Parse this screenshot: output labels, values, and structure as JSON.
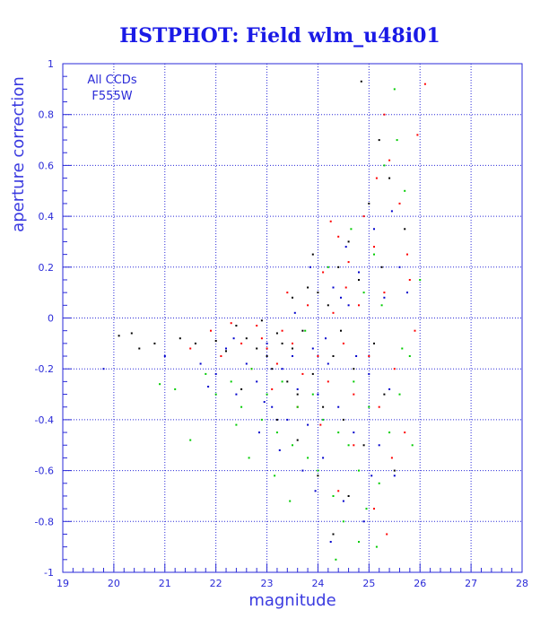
{
  "chart_data": {
    "type": "scatter",
    "title": "HSTPHOT: Field wlm_u48i01",
    "xlabel": "magnitude",
    "ylabel": "aperture correction",
    "xlim": [
      19,
      28
    ],
    "ylim": [
      -1,
      1
    ],
    "xticks": [
      "19",
      "20",
      "21",
      "22",
      "23",
      "24",
      "25",
      "26",
      "27",
      "28"
    ],
    "yticks": [
      "-1",
      "-0.8",
      "-0.6",
      "-0.4",
      "-0.2",
      "0",
      "0.2",
      "0.4",
      "0.6",
      "0.8",
      "1"
    ],
    "grid": true,
    "annotations": [
      "All CCDs",
      "F555W"
    ],
    "series": [
      {
        "color": "#000000",
        "points": [
          [
            20.1,
            -0.07
          ],
          [
            20.35,
            -0.06
          ],
          [
            20.5,
            -0.12
          ],
          [
            20.8,
            -0.1
          ],
          [
            21.3,
            -0.08
          ],
          [
            21.6,
            -0.1
          ],
          [
            22.0,
            -0.09
          ],
          [
            22.2,
            -0.13
          ],
          [
            22.4,
            -0.03
          ],
          [
            22.6,
            -0.08
          ],
          [
            22.8,
            -0.12
          ],
          [
            22.9,
            -0.01
          ],
          [
            23.0,
            -0.15
          ],
          [
            23.1,
            -0.2
          ],
          [
            23.2,
            -0.06
          ],
          [
            23.3,
            -0.1
          ],
          [
            23.4,
            -0.25
          ],
          [
            23.5,
            -0.12
          ],
          [
            23.6,
            -0.3
          ],
          [
            23.7,
            -0.05
          ],
          [
            23.8,
            0.12
          ],
          [
            23.9,
            -0.22
          ],
          [
            24.0,
            0.1
          ],
          [
            24.1,
            -0.35
          ],
          [
            24.2,
            0.05
          ],
          [
            24.3,
            -0.15
          ],
          [
            24.4,
            0.2
          ],
          [
            24.5,
            -0.4
          ],
          [
            24.6,
            0.3
          ],
          [
            24.7,
            -0.2
          ],
          [
            24.8,
            0.15
          ],
          [
            24.9,
            -0.5
          ],
          [
            25.0,
            0.45
          ],
          [
            25.1,
            -0.1
          ],
          [
            25.2,
            0.7
          ],
          [
            25.3,
            -0.3
          ],
          [
            25.4,
            0.55
          ],
          [
            25.5,
            -0.6
          ],
          [
            24.3,
            -0.85
          ],
          [
            24.6,
            -0.7
          ],
          [
            24.0,
            -0.62
          ],
          [
            23.6,
            -0.48
          ],
          [
            23.2,
            -0.4
          ],
          [
            25.7,
            0.35
          ],
          [
            24.85,
            0.93
          ],
          [
            25.25,
            0.2
          ],
          [
            23.5,
            0.08
          ],
          [
            23.9,
            0.25
          ],
          [
            24.45,
            -0.05
          ],
          [
            22.5,
            -0.28
          ]
        ]
      },
      {
        "color": "#ff0000",
        "points": [
          [
            21.5,
            -0.12
          ],
          [
            21.9,
            -0.05
          ],
          [
            22.1,
            -0.15
          ],
          [
            22.3,
            -0.02
          ],
          [
            22.5,
            -0.1
          ],
          [
            22.7,
            -0.2
          ],
          [
            22.9,
            -0.08
          ],
          [
            23.0,
            -0.12
          ],
          [
            23.2,
            -0.18
          ],
          [
            23.3,
            -0.05
          ],
          [
            23.5,
            -0.1
          ],
          [
            23.7,
            -0.22
          ],
          [
            23.8,
            0.05
          ],
          [
            24.0,
            -0.15
          ],
          [
            24.1,
            0.18
          ],
          [
            24.2,
            -0.25
          ],
          [
            24.3,
            0.02
          ],
          [
            24.4,
            0.32
          ],
          [
            24.5,
            -0.1
          ],
          [
            24.6,
            0.22
          ],
          [
            24.7,
            -0.3
          ],
          [
            24.8,
            0.05
          ],
          [
            24.9,
            0.4
          ],
          [
            25.0,
            -0.15
          ],
          [
            25.1,
            0.28
          ],
          [
            25.2,
            -0.35
          ],
          [
            25.3,
            0.1
          ],
          [
            25.4,
            0.62
          ],
          [
            25.5,
            -0.2
          ],
          [
            25.6,
            0.45
          ],
          [
            25.7,
            -0.45
          ],
          [
            25.8,
            0.15
          ],
          [
            25.9,
            -0.05
          ],
          [
            26.1,
            0.92
          ],
          [
            25.95,
            0.72
          ],
          [
            25.3,
            0.8
          ],
          [
            24.7,
            -0.5
          ],
          [
            24.4,
            -0.68
          ],
          [
            25.1,
            -0.75
          ],
          [
            25.35,
            -0.85
          ],
          [
            23.1,
            -0.28
          ],
          [
            23.6,
            -0.35
          ],
          [
            24.05,
            -0.42
          ],
          [
            24.55,
            0.12
          ],
          [
            24.25,
            0.38
          ],
          [
            23.4,
            0.1
          ],
          [
            22.8,
            -0.03
          ],
          [
            25.45,
            -0.55
          ],
          [
            25.75,
            0.25
          ],
          [
            25.15,
            0.55
          ]
        ]
      },
      {
        "color": "#00cc00",
        "points": [
          [
            21.2,
            -0.28
          ],
          [
            21.8,
            -0.22
          ],
          [
            22.0,
            -0.3
          ],
          [
            22.3,
            -0.25
          ],
          [
            22.5,
            -0.35
          ],
          [
            22.7,
            -0.2
          ],
          [
            22.9,
            -0.4
          ],
          [
            23.0,
            -0.3
          ],
          [
            23.2,
            -0.45
          ],
          [
            23.3,
            -0.25
          ],
          [
            23.5,
            -0.5
          ],
          [
            23.6,
            -0.35
          ],
          [
            23.8,
            -0.55
          ],
          [
            23.9,
            -0.3
          ],
          [
            24.0,
            -0.6
          ],
          [
            24.1,
            -0.4
          ],
          [
            24.3,
            -0.7
          ],
          [
            24.4,
            -0.45
          ],
          [
            24.5,
            -0.8
          ],
          [
            24.6,
            -0.5
          ],
          [
            24.7,
            -0.25
          ],
          [
            24.8,
            -0.6
          ],
          [
            24.9,
            0.1
          ],
          [
            25.0,
            -0.35
          ],
          [
            25.1,
            0.25
          ],
          [
            25.2,
            -0.65
          ],
          [
            25.3,
            0.6
          ],
          [
            25.4,
            -0.45
          ],
          [
            25.5,
            0.9
          ],
          [
            25.6,
            -0.3
          ],
          [
            25.7,
            0.5
          ],
          [
            25.8,
            -0.15
          ],
          [
            26.0,
            0.15
          ],
          [
            25.85,
            -0.5
          ],
          [
            25.15,
            -0.9
          ],
          [
            24.35,
            -0.95
          ],
          [
            23.45,
            -0.72
          ],
          [
            22.65,
            -0.55
          ],
          [
            21.5,
            -0.48
          ],
          [
            20.9,
            -0.26
          ],
          [
            24.65,
            0.35
          ],
          [
            24.2,
            0.2
          ],
          [
            23.75,
            -0.05
          ],
          [
            25.25,
            0.05
          ],
          [
            24.95,
            -0.75
          ],
          [
            25.55,
            0.7
          ],
          [
            22.4,
            -0.42
          ],
          [
            23.15,
            -0.62
          ],
          [
            24.8,
            -0.88
          ],
          [
            25.65,
            -0.12
          ]
        ]
      },
      {
        "color": "#0000cc",
        "points": [
          [
            19.8,
            -0.2
          ],
          [
            21.0,
            -0.15
          ],
          [
            21.7,
            -0.18
          ],
          [
            22.0,
            -0.22
          ],
          [
            22.2,
            -0.12
          ],
          [
            22.4,
            -0.3
          ],
          [
            22.6,
            -0.18
          ],
          [
            22.8,
            -0.25
          ],
          [
            23.0,
            -0.1
          ],
          [
            23.1,
            -0.35
          ],
          [
            23.3,
            -0.2
          ],
          [
            23.4,
            -0.4
          ],
          [
            23.5,
            -0.15
          ],
          [
            23.6,
            -0.28
          ],
          [
            23.8,
            -0.42
          ],
          [
            23.9,
            -0.12
          ],
          [
            24.0,
            -0.3
          ],
          [
            24.1,
            -0.55
          ],
          [
            24.2,
            -0.18
          ],
          [
            24.3,
            0.12
          ],
          [
            24.4,
            -0.35
          ],
          [
            24.6,
            0.05
          ],
          [
            24.7,
            -0.45
          ],
          [
            24.8,
            0.18
          ],
          [
            25.0,
            -0.22
          ],
          [
            25.1,
            0.35
          ],
          [
            25.2,
            -0.5
          ],
          [
            25.3,
            0.08
          ],
          [
            25.4,
            -0.28
          ],
          [
            25.6,
            0.2
          ],
          [
            25.5,
            -0.62
          ],
          [
            24.5,
            -0.72
          ],
          [
            24.25,
            -0.88
          ],
          [
            23.7,
            -0.6
          ],
          [
            23.25,
            -0.52
          ],
          [
            22.85,
            -0.45
          ],
          [
            22.35,
            -0.08
          ],
          [
            23.85,
            0.2
          ],
          [
            24.55,
            0.28
          ],
          [
            25.75,
            0.1
          ],
          [
            24.9,
            -0.8
          ],
          [
            23.55,
            0.02
          ],
          [
            24.15,
            -0.08
          ],
          [
            22.95,
            -0.33
          ],
          [
            21.85,
            -0.27
          ],
          [
            25.05,
            -0.62
          ],
          [
            24.75,
            -0.15
          ],
          [
            23.95,
            -0.68
          ],
          [
            24.45,
            0.08
          ],
          [
            25.45,
            0.42
          ]
        ]
      }
    ]
  }
}
